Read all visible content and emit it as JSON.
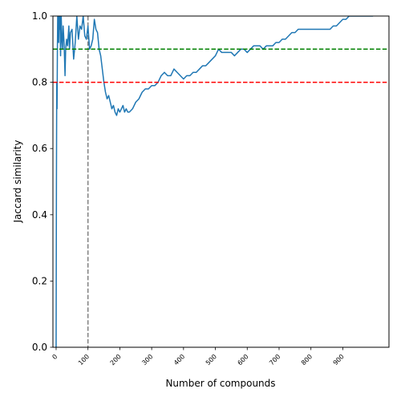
{
  "chart_data": {
    "type": "line",
    "xlabel": "Number of compounds",
    "ylabel": "Jaccard similarity",
    "xlim": [
      -10,
      1045
    ],
    "ylim": [
      0.0,
      1.0
    ],
    "x_ticks": [
      0,
      100,
      200,
      300,
      400,
      500,
      600,
      700,
      800,
      900
    ],
    "x_tick_labels": [
      "0",
      "100",
      "200",
      "300",
      "400",
      "500",
      "600",
      "700",
      "800",
      "900"
    ],
    "y_ticks": [
      0.0,
      0.2,
      0.4,
      0.6,
      0.8,
      1.0
    ],
    "y_tick_labels": [
      "0.0",
      "0.2",
      "0.4",
      "0.6",
      "0.8",
      "1.0"
    ],
    "grid": false,
    "series": [
      {
        "color": "#1f77b4",
        "x": [
          0,
          1,
          2,
          3,
          4,
          5,
          6,
          7,
          8,
          9,
          10,
          12,
          14,
          16,
          18,
          20,
          22,
          25,
          28,
          30,
          33,
          36,
          40,
          42,
          45,
          50,
          55,
          60,
          65,
          70,
          75,
          80,
          85,
          90,
          95,
          100,
          105,
          110,
          115,
          120,
          125,
          130,
          135,
          140,
          145,
          150,
          155,
          160,
          165,
          170,
          175,
          180,
          185,
          190,
          195,
          200,
          205,
          210,
          215,
          220,
          225,
          230,
          240,
          250,
          260,
          270,
          280,
          290,
          300,
          310,
          320,
          330,
          340,
          350,
          360,
          370,
          380,
          390,
          400,
          410,
          420,
          430,
          440,
          450,
          460,
          470,
          480,
          490,
          500,
          510,
          520,
          530,
          540,
          550,
          560,
          570,
          580,
          590,
          600,
          610,
          620,
          630,
          640,
          650,
          660,
          670,
          680,
          690,
          700,
          710,
          720,
          730,
          740,
          750,
          760,
          770,
          780,
          790,
          800,
          810,
          820,
          830,
          840,
          850,
          860,
          870,
          880,
          890,
          900,
          910,
          920,
          930,
          940,
          950,
          960,
          970,
          980,
          990,
          995
        ],
        "y": [
          0.0,
          0.5,
          0.8,
          0.72,
          0.9,
          1.0,
          0.95,
          1.0,
          0.92,
          1.0,
          0.96,
          1.0,
          0.88,
          1.0,
          0.93,
          0.9,
          0.97,
          0.92,
          0.82,
          0.9,
          0.93,
          0.91,
          0.97,
          0.9,
          0.95,
          0.96,
          0.87,
          0.92,
          1.0,
          0.93,
          0.97,
          0.96,
          1.0,
          0.94,
          0.93,
          0.97,
          0.9,
          0.91,
          0.93,
          0.99,
          0.96,
          0.95,
          0.9,
          0.88,
          0.84,
          0.8,
          0.77,
          0.75,
          0.76,
          0.74,
          0.72,
          0.73,
          0.71,
          0.7,
          0.72,
          0.71,
          0.72,
          0.73,
          0.71,
          0.72,
          0.71,
          0.71,
          0.72,
          0.74,
          0.75,
          0.77,
          0.78,
          0.78,
          0.79,
          0.79,
          0.8,
          0.82,
          0.83,
          0.82,
          0.82,
          0.84,
          0.83,
          0.82,
          0.81,
          0.82,
          0.82,
          0.83,
          0.83,
          0.84,
          0.85,
          0.85,
          0.86,
          0.87,
          0.88,
          0.9,
          0.89,
          0.89,
          0.89,
          0.89,
          0.88,
          0.89,
          0.9,
          0.9,
          0.89,
          0.9,
          0.91,
          0.91,
          0.91,
          0.9,
          0.91,
          0.91,
          0.91,
          0.92,
          0.92,
          0.93,
          0.93,
          0.94,
          0.95,
          0.95,
          0.96,
          0.96,
          0.96,
          0.96,
          0.96,
          0.96,
          0.96,
          0.96,
          0.96,
          0.96,
          0.96,
          0.97,
          0.97,
          0.98,
          0.99,
          0.99,
          1.0,
          1.0,
          1.0,
          1.0,
          1.0,
          1.0,
          1.0,
          1.0,
          1.0
        ]
      }
    ],
    "hlines": [
      {
        "y": 0.9,
        "color": "#008000",
        "style": "dashed"
      },
      {
        "y": 0.8,
        "color": "#ff0000",
        "style": "dashed"
      }
    ],
    "vlines": [
      {
        "x": 100,
        "color": "#808080",
        "style": "dashed"
      }
    ]
  }
}
